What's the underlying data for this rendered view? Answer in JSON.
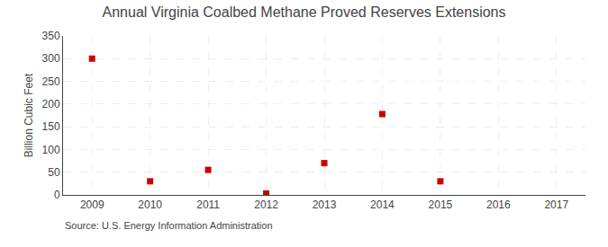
{
  "chart_data": {
    "type": "scatter",
    "title": "Annual Virginia Coalbed Methane Proved Reserves Extensions",
    "ylabel": "Billion Cubic Feet",
    "annotations": [
      "Source: U.S. Energy Information Administration"
    ],
    "x": [
      2009,
      2010,
      2011,
      2012,
      2013,
      2014,
      2015
    ],
    "values": [
      300,
      30,
      55,
      3,
      70,
      178,
      30
    ],
    "color": "#cc0000",
    "marker": "square",
    "xlim": [
      2008.5,
      2017.5
    ],
    "ylim": [
      0,
      350
    ],
    "xticks": [
      2009,
      2010,
      2011,
      2012,
      2013,
      2014,
      2015,
      2016,
      2017
    ],
    "yticks": [
      0,
      50,
      100,
      150,
      200,
      250,
      300,
      350
    ],
    "grid": true
  }
}
